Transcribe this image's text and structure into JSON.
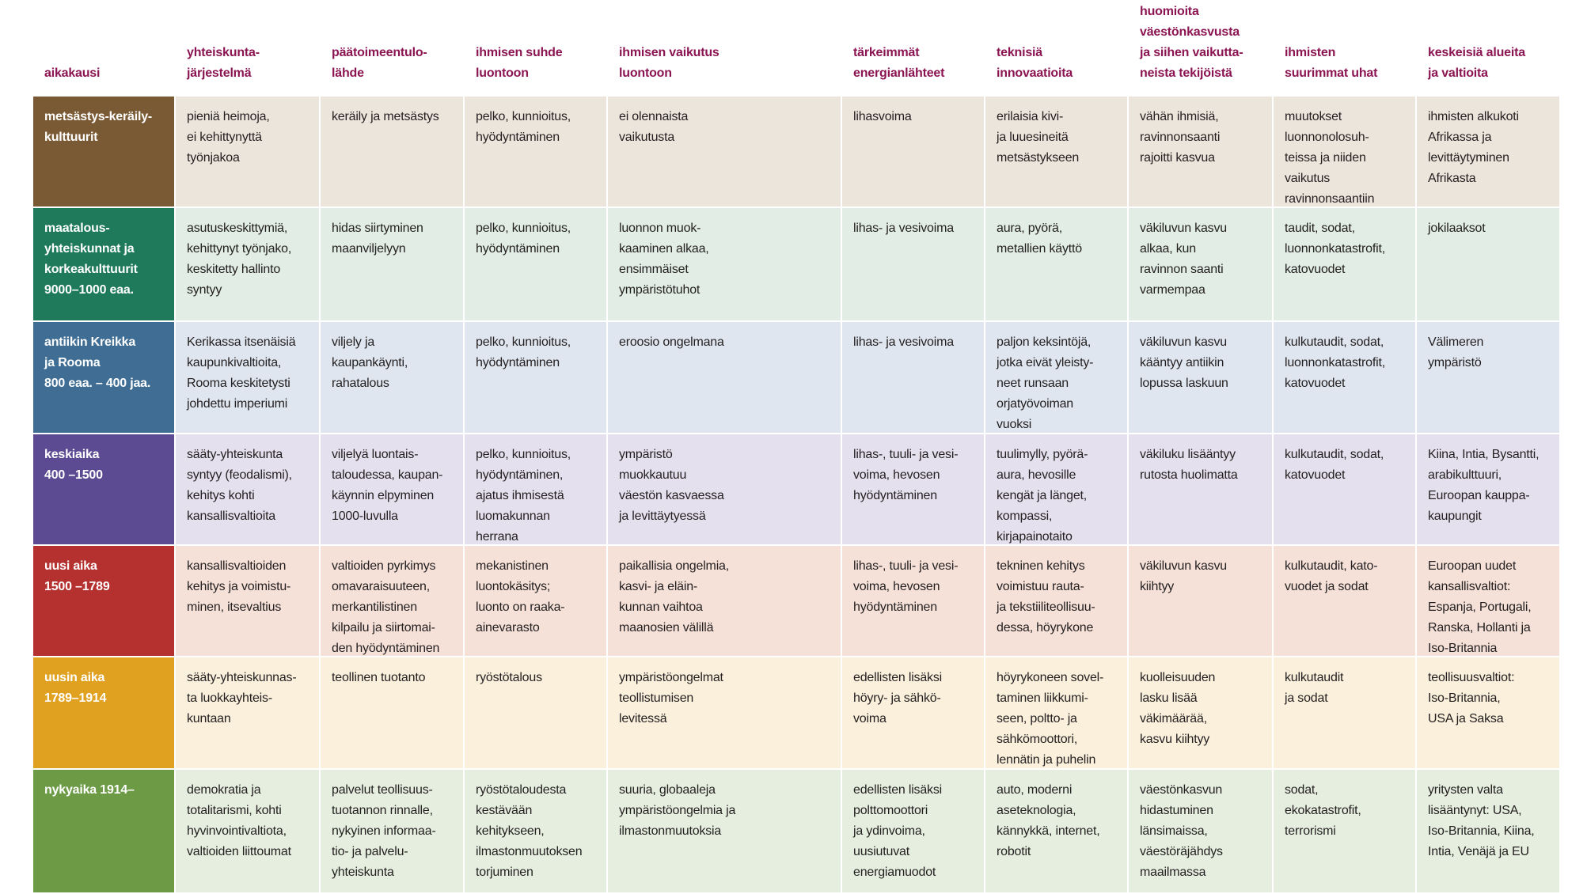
{
  "header": [
    [
      "aikakausi"
    ],
    [
      "yhteiskunta-",
      "järjestelmä"
    ],
    [
      "päätoimeentulo-",
      "lähde"
    ],
    [
      "ihmisen suhde",
      "luontoon"
    ],
    [
      "ihmisen vaikutus",
      "luontoon"
    ],
    [
      "tärkeimmät",
      "energianlähteet"
    ],
    [
      "teknisiä",
      "innovaatioita"
    ],
    [
      "huomioita",
      "väestönkasvusta",
      "ja siihen vaikutta-",
      "neista tekijöistä"
    ],
    [
      "ihmisten",
      "suurimmat uhat"
    ],
    [
      "keskeisiä alueita",
      "ja valtioita"
    ]
  ],
  "rows": [
    [
      [
        "metsästys-keräily-",
        "kulttuurit"
      ],
      [
        "pieniä heimoja,",
        "ei kehittynyttä",
        "työnjakoa"
      ],
      [
        "keräily ja metsästys"
      ],
      [
        "pelko, kunnioitus,",
        "hyödyntäminen"
      ],
      [
        "ei olennaista",
        "vaikutusta"
      ],
      [
        "lihasvoima"
      ],
      [
        "erilaisia kivi-",
        "ja luuesineitä",
        "metsästykseen"
      ],
      [
        "vähän ihmisiä,",
        "ravinnonsaanti",
        "rajoitti kasvua"
      ],
      [
        "muutokset",
        "luonnonolosuh-",
        "teissa ja niiden",
        "vaikutus",
        "ravinnonsaantiin"
      ],
      [
        "ihmisten alkukoti",
        "Afrikassa ja",
        "levittäytyminen",
        "Afrikasta"
      ]
    ],
    [
      [
        "maatalous-",
        "yhteiskunnat ja",
        "korkeakulttuurit",
        "9000–1000 eaa."
      ],
      [
        "asutuskeskittymiä,",
        "kehittynyt työnjako,",
        "keskitetty hallinto",
        "syntyy"
      ],
      [
        "hidas siirtyminen",
        "maanviljelyyn"
      ],
      [
        "pelko, kunnioitus,",
        "hyödyntäminen"
      ],
      [
        "luonnon muok-",
        "kaaminen alkaa,",
        "ensimmäiset",
        " ympäristötuhot"
      ],
      [
        "lihas- ja vesivoima"
      ],
      [
        "aura, pyörä,",
        "metallien käyttö"
      ],
      [
        "väkiluvun kasvu",
        "alkaa, kun",
        "ravinnon saanti",
        "varmempaa"
      ],
      [
        "taudit, sodat,",
        "luonnonkatastrofit,",
        "katovuodet"
      ],
      [
        "jokilaaksot"
      ]
    ],
    [
      [
        "antiikin Kreikka",
        "ja Rooma",
        "800 eaa. – 400 jaa."
      ],
      [
        "Kerikassa itsenäisiä",
        "kaupunkivaltioita,",
        "Rooma keskitetysti",
        "johdettu imperiumi"
      ],
      [
        "viljely ja",
        "kaupankäynti,",
        "rahatalous"
      ],
      [
        "pelko, kunnioitus,",
        "hyödyntäminen"
      ],
      [
        "eroosio ongelmana"
      ],
      [
        "lihas- ja vesivoima"
      ],
      [
        "paljon keksintöjä,",
        "jotka eivät yleisty-",
        "neet runsaan",
        "orjatyövoiman",
        "vuoksi"
      ],
      [
        "väkiluvun kasvu",
        "kääntyy antiikin",
        "lopussa laskuun"
      ],
      [
        "kulkutaudit, sodat,",
        "luonnonkatastrofit,",
        "katovuodet"
      ],
      [
        "Välimeren",
        "ympäristö"
      ]
    ],
    [
      [
        "keskiaika",
        "400 –1500"
      ],
      [
        "sääty-yhteiskunta",
        "syntyy (feodalismi),",
        "kehitys kohti",
        "kansallisvaltioita"
      ],
      [
        "viljelyä luontais-",
        "taloudessa, kaupan-",
        "käynnin elpyminen",
        "1000-luvulla"
      ],
      [
        "pelko, kunnioitus,",
        "hyödyntäminen,",
        "ajatus ihmisestä",
        "luomakunnan",
        "herrana"
      ],
      [
        "ympäristö",
        "muokkautuu",
        "väestön kasvaessa",
        "ja levittäytyessä"
      ],
      [
        "lihas-, tuuli- ja vesi-",
        "voima, hevosen",
        "hyödyntäminen"
      ],
      [
        "tuulimylly, pyörä-",
        "aura, hevosille",
        "kengät ja länget,",
        "kompassi,",
        "kirjapainotaito"
      ],
      [
        "väkiluku lisääntyy",
        "rutosta huolimatta"
      ],
      [
        "kulkutaudit, sodat,",
        "katovuodet"
      ],
      [
        "Kiina, Intia, Bysantti,",
        "arabikulttuuri,",
        "Euroopan kauppa-",
        "kaupungit"
      ]
    ],
    [
      [
        "uusi aika",
        "1500 –1789"
      ],
      [
        "kansallisvaltioiden",
        "kehitys ja voimistu-",
        "minen, itsevaltius"
      ],
      [
        "valtioiden pyrkimys",
        "omavaraisuuteen,",
        "merkantilistinen",
        "kilpailu ja siirtomai-",
        "den hyödyntäminen"
      ],
      [
        "mekanistinen",
        "luontokäsitys;",
        "luonto on raaka-",
        "ainevarasto"
      ],
      [
        "paikallisia ongelmia,",
        "kasvi- ja eläin-",
        "kunnan vaihtoa",
        "maanosien välillä"
      ],
      [
        "lihas-, tuuli- ja vesi-",
        "voima, hevosen",
        "hyödyntäminen"
      ],
      [
        "tekninen kehitys",
        "voimistuu rauta-",
        "ja tekstiiliteollisuu-",
        "dessa, höyrykone"
      ],
      [
        "väkiluvun kasvu",
        "kiihtyy"
      ],
      [
        "kulkutaudit, kato-",
        "vuodet ja sodat"
      ],
      [
        "Euroopan uudet",
        "kansallisvaltiot:",
        "Espanja, Portugali,",
        "Ranska, Hollanti ja",
        "Iso-Britannia"
      ]
    ],
    [
      [
        "uusin aika",
        "1789–1914"
      ],
      [
        "sääty-yhteiskunnas-",
        "ta luokkayhteis-",
        "kuntaan"
      ],
      [
        "teollinen tuotanto"
      ],
      [
        "ryöstötalous"
      ],
      [
        "ympäristöongelmat",
        "teollistumisen",
        "levitessä"
      ],
      [
        "edellisten lisäksi",
        "höyry- ja sähkö-",
        "voima"
      ],
      [
        "höyrykoneen sovel-",
        "taminen liikkumi-",
        "seen, poltto- ja",
        "sähkömoottori,",
        "lennätin ja puhelin"
      ],
      [
        "kuolleisuuden",
        "lasku lisää",
        "väkimäärää,",
        "kasvu kiihtyy"
      ],
      [
        "kulkutaudit",
        "ja sodat"
      ],
      [
        "teollisuusvaltiot:",
        "Iso-Britannia,",
        "USA ja Saksa"
      ]
    ],
    [
      [
        "nykyaika 1914–"
      ],
      [
        "demokratia ja",
        "totalitarismi, kohti",
        "hyvinvointivaltiota,",
        "valtioiden liittoumat"
      ],
      [
        "palvelut teollisuus-",
        "tuotannon rinnalle,",
        "nykyinen informaa-",
        "tio- ja palvelu-",
        "yhteiskunta"
      ],
      [
        "ryöstötaloudesta",
        "kestävään",
        "kehitykseen,",
        "ilmastonmuutoksen",
        "torjuminen"
      ],
      [
        "suuria, globaaleja",
        "ympäristöongelmia ja",
        "ilmastonmuutoksia"
      ],
      [
        "edellisten lisäksi",
        "polttomoottori",
        "ja ydinvoima,",
        "uusiutuvat",
        "energiamuodot"
      ],
      [
        "auto, moderni",
        "aseteknologia,",
        "kännykkä, internet,",
        "robotit"
      ],
      [
        "väestönkasvun",
        "hidastuminen",
        "länsimaissa,",
        "väestöräjähdys",
        "maailmassa"
      ],
      [
        "sodat,",
        "ekokatastrofit,",
        "terrorismi"
      ],
      [
        "yritysten valta",
        "lisääntynyt: USA,",
        "Iso-Britannia, Kiina,",
        "Intia, Venäjä ja EU"
      ]
    ]
  ]
}
